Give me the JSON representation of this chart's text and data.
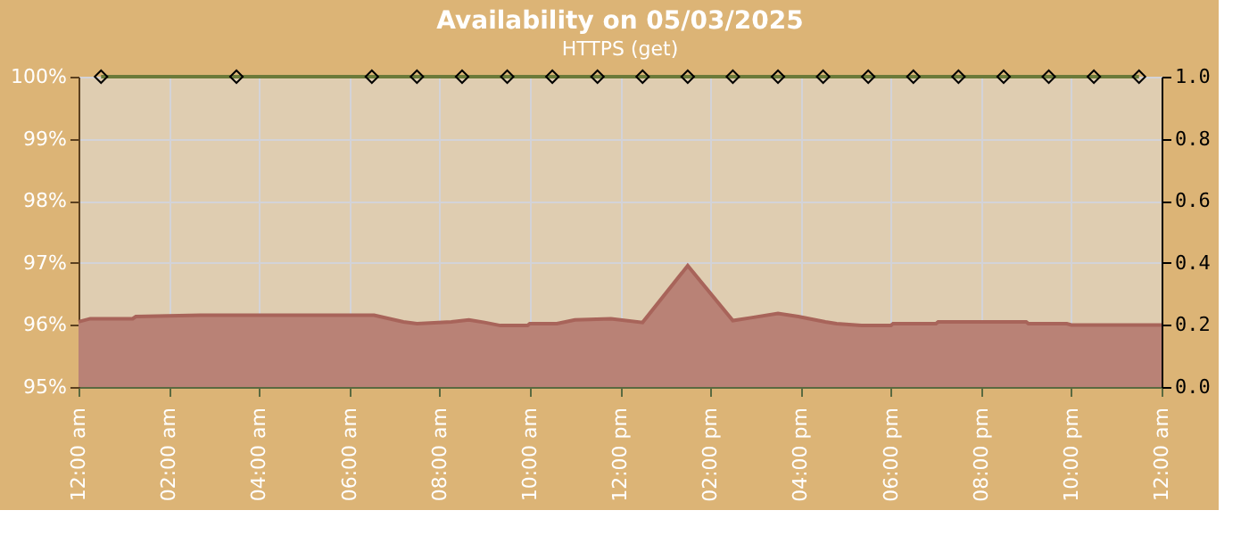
{
  "chart_data": {
    "type": "area",
    "title": "Availability on 05/03/2025",
    "annotations": [
      "HTTPS (get)"
    ],
    "xlim": [
      0,
      24
    ],
    "xticks": [
      {
        "value": 0,
        "label": "12:00 am"
      },
      {
        "value": 2,
        "label": "02:00 am"
      },
      {
        "value": 4,
        "label": "04:00 am"
      },
      {
        "value": 6,
        "label": "06:00 am"
      },
      {
        "value": 8,
        "label": "08:00 am"
      },
      {
        "value": 10,
        "label": "10:00 am"
      },
      {
        "value": 12,
        "label": "12:00 pm"
      },
      {
        "value": 14,
        "label": "02:00 pm"
      },
      {
        "value": 16,
        "label": "04:00 pm"
      },
      {
        "value": 18,
        "label": "06:00 pm"
      },
      {
        "value": 20,
        "label": "08:00 pm"
      },
      {
        "value": 22,
        "label": "10:00 pm"
      },
      {
        "value": 24,
        "label": "12:00 am"
      }
    ],
    "ylim": [
      95,
      100
    ],
    "yticks": [
      {
        "value": 95,
        "label": "95%"
      },
      {
        "value": 96,
        "label": "96%"
      },
      {
        "value": 97,
        "label": "97%"
      },
      {
        "value": 98,
        "label": "98%"
      },
      {
        "value": 99,
        "label": "99%"
      },
      {
        "value": 100,
        "label": "100%"
      }
    ],
    "y2lim": [
      0,
      1
    ],
    "y2ticks": [
      {
        "value": 0,
        "label": "0.0"
      },
      {
        "value": 0.2,
        "label": "0.2"
      },
      {
        "value": 0.4,
        "label": "0.4"
      },
      {
        "value": 0.6,
        "label": "0.6"
      },
      {
        "value": 0.8,
        "label": "0.8"
      },
      {
        "value": 1,
        "label": "1.0"
      }
    ],
    "grid": true,
    "series": [
      {
        "axis": "y2",
        "color": "#b98276",
        "x": [
          0,
          0.26,
          1.2,
          1.27,
          2.7,
          6.55,
          7.2,
          7.5,
          8.26,
          8.65,
          9.0,
          9.35,
          9.95,
          10.0,
          10.6,
          11.0,
          11.8,
          12.5,
          13.5,
          14.5,
          14.9,
          15.5,
          15.95,
          16.55,
          16.8,
          17.35,
          18.0,
          18.05,
          19.0,
          19.05,
          21.0,
          21.05,
          21.9,
          22.0,
          24
        ],
        "values": [
          0.21,
          0.22,
          0.22,
          0.227,
          0.231,
          0.231,
          0.21,
          0.204,
          0.21,
          0.216,
          0.208,
          0.198,
          0.198,
          0.204,
          0.204,
          0.216,
          0.22,
          0.208,
          0.391,
          0.214,
          0.223,
          0.237,
          0.227,
          0.21,
          0.204,
          0.198,
          0.198,
          0.204,
          0.204,
          0.21,
          0.21,
          0.204,
          0.204,
          0.2,
          0.2
        ]
      },
      {
        "type": "line",
        "axis": "y",
        "color": "#6b7a3a",
        "marker": "diamond",
        "x": [
          0.5,
          3.5,
          6.5,
          7.5,
          8.5,
          9.5,
          10.5,
          11.5,
          12.5,
          13.5,
          14.5,
          15.5,
          16.5,
          17.5,
          18.5,
          19.5,
          20.5,
          21.5,
          22.5,
          23.5
        ],
        "values": [
          100,
          100,
          100,
          100,
          100,
          100,
          100,
          100,
          100,
          100,
          100,
          100,
          100,
          100,
          100,
          100,
          100,
          100,
          100,
          100
        ]
      }
    ]
  }
}
